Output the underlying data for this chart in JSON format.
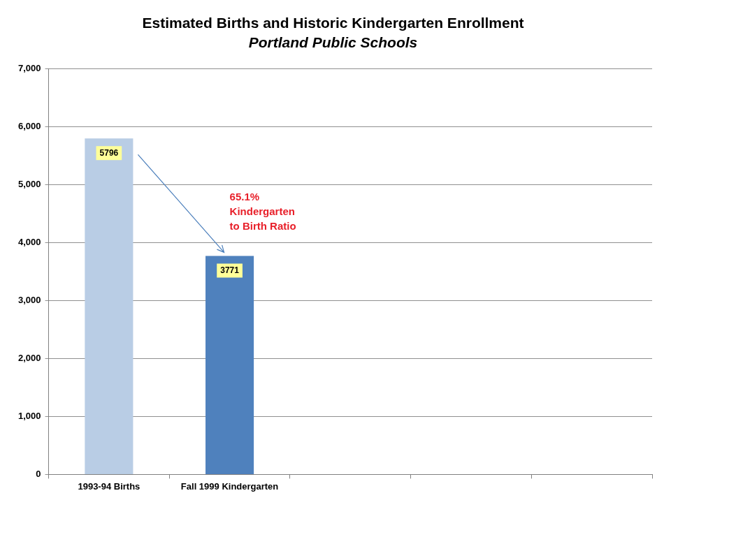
{
  "chart_data": {
    "type": "bar",
    "title": "Estimated Births and Historic Kindergarten Enrollment",
    "subtitle": "Portland Public Schools",
    "categories": [
      "1993-94 Births",
      "Fall 1999 Kindergarten",
      null,
      null,
      null
    ],
    "values": [
      5796,
      3771,
      null,
      null,
      null
    ],
    "colors": [
      "#b9cde5",
      "#4f81bd",
      "#4f81bd",
      "#4f81bd",
      "#4f81bd"
    ],
    "data_labels": true,
    "annotations": [
      "65.1%\nKindergarten\nto Birth Ratio"
    ],
    "ylim": [
      0,
      7000
    ],
    "yticks": [
      {
        "value": 0,
        "label": "0"
      },
      {
        "value": 1000,
        "label": "1,000"
      },
      {
        "value": 2000,
        "label": "2,000"
      },
      {
        "value": 3000,
        "label": "3,000"
      },
      {
        "value": 4000,
        "label": "4,000"
      },
      {
        "value": 5000,
        "label": "5,000"
      },
      {
        "value": 6000,
        "label": "6,000"
      },
      {
        "value": 7000,
        "label": "7,000"
      }
    ],
    "grid": "y",
    "legend": false
  }
}
